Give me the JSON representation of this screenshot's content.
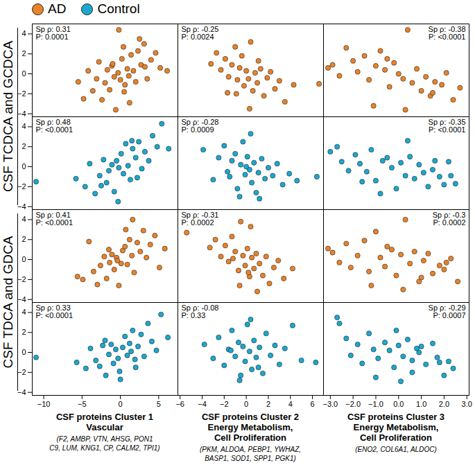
{
  "chart_data": [
    {
      "type": "scatter",
      "xlim": [
        -11.5,
        7.5
      ],
      "ylim": [
        -4.3,
        5
      ],
      "tick_labels": "y",
      "yticks": [
        -4,
        -2,
        0,
        2,
        4
      ],
      "annotations": [
        "Sp ρ: 0.31",
        "P: 0.0001"
      ],
      "x": [
        -5.5,
        -4.8,
        -4.2,
        -3.6,
        -3.1,
        -2.8,
        -2.4,
        -2.0,
        -1.7,
        -1.4,
        -1.1,
        -0.8,
        -0.6,
        -0.3,
        0,
        0.2,
        0.4,
        0.6,
        0.9,
        1.1,
        1.4,
        1.7,
        2.0,
        2.3,
        2.7,
        3.1,
        3.5,
        4.0,
        4.6,
        5.2,
        6.1,
        -0.2,
        0.5,
        -1.0,
        1.2,
        2.5,
        3.2
      ],
      "series": [
        {
          "name": "AD",
          "color": "#E8832A",
          "values": [
            -0.8,
            -2.5,
            0.3,
            -1.7,
            -0.5,
            1.2,
            -2.6,
            -0.9,
            0.4,
            -1.6,
            0.8,
            -0.3,
            -3.6,
            0.1,
            -0.6,
            1.5,
            2.7,
            -1.1,
            0.5,
            -0.2,
            1.9,
            0.3,
            -0.8,
            2.3,
            0.9,
            3.0,
            -0.5,
            1.4,
            2.1,
            0.6,
            0.3,
            4.4,
            -1.8,
            1.0,
            -2.9,
            3.5,
            0.7
          ]
        }
      ]
    },
    {
      "type": "scatter",
      "xlim": [
        -6.2,
        7
      ],
      "ylim": [
        -4.3,
        5
      ],
      "tick_labels": false,
      "annotations": [
        "Sp ρ: -0.25",
        "P: 0.0024"
      ],
      "x": [
        -3.2,
        -2.7,
        -2.3,
        -1.9,
        -1.6,
        -1.3,
        -1.0,
        -0.8,
        -0.6,
        -0.4,
        -0.2,
        0,
        0.2,
        0.4,
        0.6,
        0.8,
        1.0,
        1.3,
        1.6,
        1.9,
        2.2,
        2.6,
        3.0,
        3.5,
        4.3,
        6.6,
        -0.9,
        0.3,
        1.1,
        -1.7
      ],
      "series": [
        {
          "name": "AD",
          "color": "#E8832A",
          "values": [
            1.0,
            2.1,
            0.4,
            1.5,
            -0.3,
            0.9,
            2.7,
            -0.6,
            0.6,
            1.8,
            -1.2,
            0.3,
            -0.5,
            3.2,
            -1.7,
            0.1,
            -0.9,
            0.5,
            -2.2,
            -0.4,
            0.2,
            -1.5,
            -0.7,
            -2.8,
            -1.1,
            -1.0,
            -2.0,
            -3.5,
            1.3,
            -1.9
          ]
        }
      ]
    },
    {
      "type": "scatter",
      "xlim": [
        -3.3,
        3.1
      ],
      "ylim": [
        -4.3,
        5
      ],
      "tick_labels": false,
      "annotations": [
        "Sp ρ: -0.38",
        "P: <0.0001"
      ],
      "x": [
        -3.1,
        -2.9,
        -2.6,
        -2.3,
        -2.0,
        -1.8,
        -1.5,
        -1.3,
        -1.0,
        -0.8,
        -0.6,
        -0.4,
        -0.2,
        0,
        0.2,
        0.4,
        0.6,
        0.8,
        1.0,
        1.2,
        1.4,
        1.6,
        1.9,
        2.1,
        2.4,
        2.7,
        -1.1,
        0.3,
        -0.5,
        1.5
      ],
      "series": [
        {
          "name": "AD",
          "color": "#E8832A",
          "values": [
            0.6,
            0.9,
            -0.2,
            2.6,
            1.3,
            0.2,
            1.8,
            -0.6,
            0.8,
            2.3,
            0.4,
            -1.3,
            1.1,
            0.0,
            -0.5,
            4.4,
            -0.9,
            0.5,
            -1.7,
            -0.3,
            -2.2,
            -0.8,
            -1.1,
            0.1,
            -2.6,
            -1.4,
            -3.2,
            -3.6,
            1.5,
            -1.9
          ]
        }
      ]
    },
    {
      "type": "scatter",
      "xlim": [
        -11.5,
        7.5
      ],
      "ylim": [
        -4.3,
        5
      ],
      "tick_labels": "y",
      "yticks": [
        -4,
        -2,
        0,
        2,
        4
      ],
      "annotations": [
        "Sp ρ: 0.48",
        "P: <0.0001"
      ],
      "x": [
        -11,
        -5.8,
        -4.6,
        -4.0,
        -3.3,
        -2.7,
        -2.2,
        -1.8,
        -1.5,
        -1.1,
        -0.8,
        -0.5,
        -0.2,
        0.1,
        0.4,
        0.7,
        1.0,
        1.3,
        1.6,
        2.0,
        2.4,
        2.8,
        3.2,
        3.7,
        4.2,
        4.8,
        5.4,
        6.3,
        -0.3,
        1.5,
        2.2,
        -2.5
      ],
      "series": [
        {
          "name": "Control",
          "color": "#1BA8CF",
          "values": [
            -1.5,
            -1.2,
            -2.0,
            0.3,
            -2.7,
            -0.9,
            0.7,
            -1.6,
            -0.4,
            0.2,
            -2.5,
            0.6,
            -0.1,
            1.3,
            -0.7,
            2.3,
            0.1,
            -1.3,
            1.8,
            0.9,
            2.5,
            -0.2,
            1.5,
            0.6,
            3.1,
            2.0,
            4.3,
            1.8,
            -3.5,
            2.6,
            -1.1,
            -1.9
          ]
        }
      ]
    },
    {
      "type": "scatter",
      "xlim": [
        -6.2,
        7
      ],
      "ylim": [
        -4.3,
        5
      ],
      "tick_labels": false,
      "annotations": [
        "Sp ρ: -0.28",
        "P: 0.0009"
      ],
      "x": [
        -3.9,
        -3.0,
        -2.5,
        -2.0,
        -1.7,
        -1.3,
        -1.0,
        -0.8,
        -0.5,
        -0.3,
        -0.1,
        0.1,
        0.3,
        0.5,
        0.7,
        0.9,
        1.1,
        1.4,
        1.7,
        2.0,
        2.4,
        2.8,
        3.3,
        3.9,
        4.6,
        -0.6,
        0.4,
        1.2,
        -1.5,
        0.0,
        6.4
      ],
      "series": [
        {
          "name": "Control",
          "color": "#1BA8CF",
          "values": [
            1.7,
            -1.3,
            0.9,
            2.1,
            -0.5,
            0.6,
            1.3,
            -2.2,
            0.2,
            2.5,
            -0.8,
            1.0,
            -0.3,
            -1.6,
            0.4,
            -2.6,
            -0.6,
            0.8,
            -1.2,
            -0.1,
            -0.9,
            0.3,
            -1.8,
            -0.7,
            -1.4,
            -3.0,
            3.3,
            -3.2,
            -1.0,
            0.0,
            -1.0
          ]
        }
      ]
    },
    {
      "type": "scatter",
      "xlim": [
        -3.3,
        3.1
      ],
      "ylim": [
        -4.3,
        5
      ],
      "tick_labels": false,
      "annotations": [
        "Sp ρ: -0.35",
        "P: <0.0001"
      ],
      "x": [
        -3.0,
        -2.7,
        -2.5,
        -2.2,
        -1.9,
        -1.7,
        -1.4,
        -1.2,
        -1.0,
        -0.7,
        -0.5,
        -0.3,
        -0.1,
        0.1,
        0.3,
        0.5,
        0.7,
        0.9,
        1.1,
        1.3,
        1.5,
        1.8,
        2.0,
        2.2,
        2.5,
        -0.8,
        0.4,
        1.6,
        -1.6,
        2.3
      ],
      "series": [
        {
          "name": "Control",
          "color": "#1BA8CF",
          "values": [
            1.5,
            2.0,
            0.5,
            -0.4,
            1.2,
            0.3,
            -0.5,
            1.7,
            -1.4,
            0.6,
            0.9,
            -0.1,
            -2.2,
            0.4,
            -0.9,
            1.0,
            -1.2,
            0.2,
            -0.6,
            -2.0,
            -0.3,
            -1.0,
            -1.8,
            0.5,
            -1.7,
            -2.7,
            2.6,
            0.6,
            -1.5,
            -0.9
          ]
        }
      ]
    },
    {
      "type": "scatter",
      "xlim": [
        -11.5,
        7.5
      ],
      "ylim": [
        -4.3,
        5
      ],
      "tick_labels": "y",
      "yticks": [
        -4,
        -2,
        0,
        2,
        4
      ],
      "annotations": [
        "Sp ρ: 0.41",
        "P: <0.0001"
      ],
      "x": [
        -5.6,
        -4.9,
        -4.1,
        -3.5,
        -3.0,
        -2.6,
        -2.1,
        -1.8,
        -1.4,
        -1.1,
        -0.8,
        -0.5,
        -0.2,
        0.1,
        0.3,
        0.6,
        0.9,
        1.2,
        1.5,
        1.8,
        2.2,
        2.6,
        3.0,
        3.4,
        3.9,
        4.5,
        5.1,
        5.8,
        -0.4,
        0.7,
        1.6,
        -1.5
      ],
      "series": [
        {
          "name": "AD",
          "color": "#E8832A",
          "values": [
            -1.7,
            -2.0,
            1.8,
            -1.2,
            -2.5,
            -0.6,
            0.3,
            -1.9,
            -0.3,
            0.5,
            -1.0,
            0.2,
            -2.6,
            -0.4,
            0.9,
            1.3,
            -0.5,
            2.0,
            0.4,
            -1.3,
            1.7,
            0.8,
            2.9,
            0.2,
            1.5,
            2.4,
            -0.8,
            1.1,
            -0.1,
            3.0,
            4.0,
            1.0
          ]
        }
      ]
    },
    {
      "type": "scatter",
      "xlim": [
        -6.2,
        7
      ],
      "ylim": [
        -4.3,
        5
      ],
      "tick_labels": false,
      "annotations": [
        "Sp ρ: -0.31",
        "P: 0.0002"
      ],
      "x": [
        -5.4,
        -3.3,
        -2.8,
        -2.3,
        -1.9,
        -1.6,
        -1.3,
        -1.0,
        -0.7,
        -0.5,
        -0.3,
        -0.1,
        0.1,
        0.3,
        0.5,
        0.7,
        0.9,
        1.2,
        1.5,
        1.8,
        2.1,
        2.5,
        2.9,
        3.4,
        4.2,
        -0.6,
        0.4,
        1.0,
        -1.2,
        0.2
      ],
      "series": [
        {
          "name": "AD",
          "color": "#E8832A",
          "values": [
            2.7,
            1.2,
            2.0,
            0.3,
            1.4,
            -0.2,
            2.3,
            0.8,
            -1.1,
            3.8,
            0.4,
            -0.6,
            1.1,
            -1.7,
            0.2,
            -0.9,
            0.6,
            -0.4,
            -1.6,
            0.3,
            -2.4,
            -0.8,
            -0.1,
            -1.9,
            -0.9,
            -2.6,
            3.3,
            -3.2,
            0.1,
            -1.3
          ]
        }
      ]
    },
    {
      "type": "scatter",
      "xlim": [
        -3.3,
        3.1
      ],
      "ylim": [
        -4.3,
        5
      ],
      "tick_labels": false,
      "annotations": [
        "Sp ρ: -0.3",
        "P: 0.0002"
      ],
      "x": [
        -3.1,
        -2.9,
        -2.6,
        -2.3,
        -2.1,
        -1.8,
        -1.5,
        -1.3,
        -1.0,
        -0.8,
        -0.6,
        -0.3,
        -0.1,
        0.1,
        0.3,
        0.5,
        0.7,
        0.9,
        1.1,
        1.3,
        1.5,
        1.8,
        2.0,
        2.3,
        2.6,
        -1.2,
        0.2,
        1.0,
        -0.5,
        2.1
      ],
      "series": [
        {
          "name": "AD",
          "color": "#E8832A",
          "values": [
            1.1,
            0.7,
            -0.3,
            1.6,
            -0.8,
            0.4,
            1.9,
            -1.2,
            2.8,
            0.2,
            -0.7,
            1.0,
            -1.6,
            0.5,
            4.0,
            -0.4,
            0.8,
            -2.2,
            -0.1,
            0.6,
            -1.4,
            -0.6,
            -1.0,
            0.1,
            -2.2,
            -2.6,
            -3.0,
            -1.8,
            1.3,
            -0.3
          ]
        }
      ]
    },
    {
      "type": "scatter",
      "xlim": [
        -11.5,
        7.5
      ],
      "ylim": [
        -4.3,
        5
      ],
      "tick_labels": true,
      "xticks": [
        -10,
        -5,
        0,
        5
      ],
      "yticks": [
        -4,
        -2,
        0,
        2,
        4
      ],
      "annotations": [
        "Sp ρ: 0.33",
        "P: <0.0001"
      ],
      "x": [
        -11,
        -5.7,
        -4.5,
        -3.9,
        -3.2,
        -2.7,
        -2.3,
        -1.9,
        -1.5,
        -1.2,
        -0.9,
        -0.6,
        -0.3,
        0,
        0.3,
        0.6,
        0.9,
        1.2,
        1.6,
        1.9,
        2.3,
        2.7,
        3.1,
        3.6,
        4.1,
        4.7,
        5.3,
        6.2,
        -0.1,
        1.4,
        -2.0,
        2.0
      ],
      "series": [
        {
          "name": "Control",
          "color": "#1BA8CF",
          "values": [
            -0.5,
            -1.0,
            -1.6,
            0.4,
            -0.8,
            -1.4,
            0.7,
            -2.3,
            -0.2,
            0.8,
            -1.1,
            0.3,
            -0.6,
            -2.7,
            0.5,
            1.6,
            -0.3,
            0.9,
            2.2,
            -0.7,
            0.6,
            1.8,
            -0.4,
            2.9,
            1.1,
            0.2,
            3.8,
            1.5,
            -1.9,
            0.1,
            1.2,
            -1.5
          ]
        }
      ]
    },
    {
      "type": "scatter",
      "xlim": [
        -6.2,
        7
      ],
      "ylim": [
        -4.3,
        5
      ],
      "tick_labels": "x",
      "xticks": [
        -6,
        -4,
        -2,
        0,
        2,
        4,
        6
      ],
      "annotations": [
        "Sp ρ: -0.08",
        "P: 0.33"
      ],
      "x": [
        -3.8,
        -3.0,
        -2.5,
        -2.0,
        -1.6,
        -1.3,
        -1.0,
        -0.7,
        -0.5,
        -0.3,
        -0.1,
        0.1,
        0.3,
        0.5,
        0.7,
        0.9,
        1.2,
        1.5,
        1.8,
        2.2,
        2.6,
        3.0,
        3.5,
        4.2,
        5.0,
        -0.6,
        0.4,
        1.1,
        -1.4,
        6.3
      ],
      "series": [
        {
          "name": "Control",
          "color": "#1BA8CF",
          "values": [
            0.8,
            -0.6,
            1.5,
            -1.3,
            0.3,
            2.2,
            -0.4,
            1.0,
            -2.3,
            0.6,
            -0.9,
            2.8,
            0.1,
            -1.7,
            1.2,
            -0.5,
            0.5,
            -2.1,
            1.9,
            -0.3,
            0.7,
            -1.2,
            0.4,
            2.7,
            -0.8,
            -2.8,
            3.3,
            -1.5,
            0.2,
            -1.0
          ]
        }
      ]
    },
    {
      "type": "scatter",
      "xlim": [
        -3.3,
        3.1
      ],
      "ylim": [
        -4.3,
        5
      ],
      "tick_labels": "x",
      "xticks": [
        -3,
        -2,
        -1,
        0,
        1,
        2,
        3
      ],
      "annotations": [
        "Sp ρ: -0.29",
        "P: 0.0007"
      ],
      "x": [
        -2.7,
        -2.6,
        -2.3,
        -2.1,
        -1.8,
        -1.6,
        -1.3,
        -1.1,
        -0.9,
        -0.6,
        -0.4,
        -0.2,
        0,
        0.2,
        0.4,
        0.6,
        0.8,
        1.0,
        1.2,
        1.5,
        1.7,
        2.0,
        2.2,
        2.4,
        -1.0,
        0.1,
        0.9,
        1.8,
        -0.1,
        0.6
      ],
      "series": [
        {
          "name": "Control",
          "color": "#1BA8CF",
          "values": [
            3.5,
            2.9,
            1.4,
            -0.3,
            0.8,
            -1.1,
            1.9,
            0.3,
            -0.6,
            1.0,
            0.2,
            -1.5,
            0.7,
            -0.4,
            1.3,
            -0.8,
            0.4,
            0.6,
            -1.2,
            0.9,
            -0.5,
            -2.3,
            -0.9,
            -1.6,
            -2.5,
            -2.9,
            0.0,
            -1.0,
            2.2,
            -2.0
          ]
        }
      ]
    }
  ],
  "row_labels": [
    "CSF TCDCA and GCDCA",
    "CSF TDCA and GDCA"
  ],
  "column_labels": [
    {
      "lines": [
        "CSF proteins Cluster 1",
        "Vascular"
      ],
      "genes": [
        "(F2, AMBP, VTN, AHSG, PON1",
        "C9, LUM, KNG1, CP, CALM2, TPI1)"
      ]
    },
    {
      "lines": [
        "CSF proteins Cluster 2",
        "Energy Metabolism,",
        "Cell Proliferation"
      ],
      "genes": [
        "(PKM, ALDOA, PEBP1, YWHAZ,",
        "BASP1, SOD1, SPP1, PGK1)"
      ]
    },
    {
      "lines": [
        "CSF proteins Cluster 3",
        "Energy Metabolism,",
        "Cell Proliferation"
      ],
      "genes": [
        "(ENO2, COL6A1, ALDOC)"
      ]
    }
  ]
}
